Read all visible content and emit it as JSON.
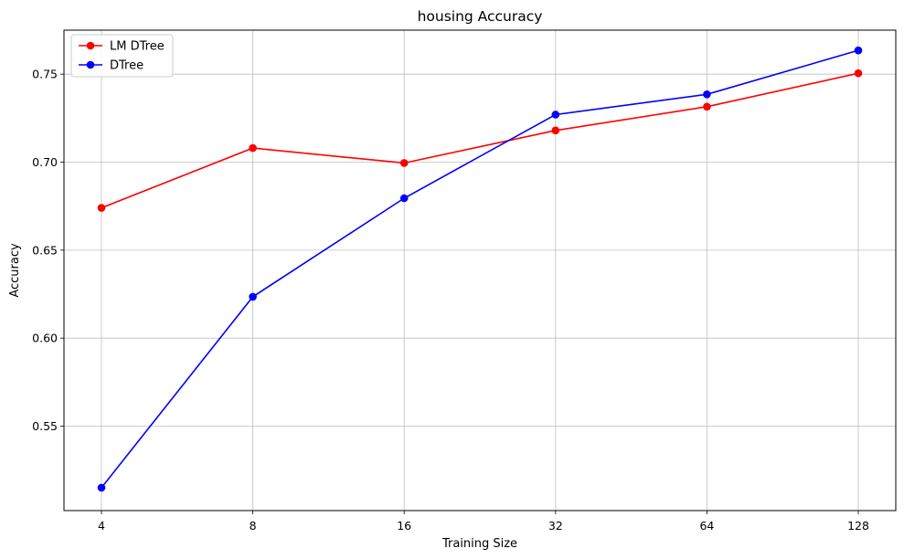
{
  "chart_data": {
    "type": "line",
    "title": "housing Accuracy",
    "xlabel": "Training Size",
    "ylabel": "Accuracy",
    "categories": [
      "4",
      "8",
      "16",
      "32",
      "64",
      "128"
    ],
    "ylim": [
      0.502,
      0.775
    ],
    "yticks": [
      "0.55",
      "0.60",
      "0.65",
      "0.70",
      "0.75"
    ],
    "grid": true,
    "legend_position": "top-left",
    "series": [
      {
        "name": "LM DTree",
        "color": "#ff0000",
        "values": [
          0.674,
          0.708,
          0.6995,
          0.718,
          0.7315,
          0.7505
        ]
      },
      {
        "name": "DTree",
        "color": "#0000ff",
        "values": [
          0.515,
          0.6235,
          0.6795,
          0.727,
          0.7385,
          0.7635
        ]
      }
    ]
  }
}
